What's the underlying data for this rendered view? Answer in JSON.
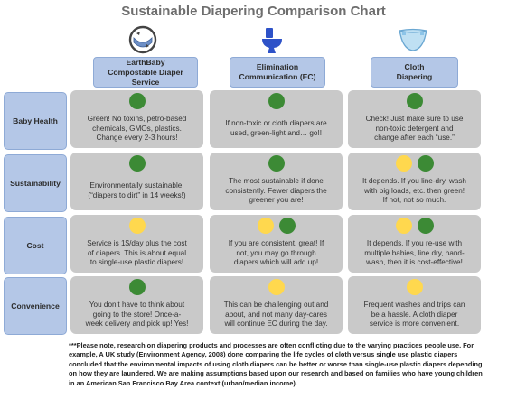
{
  "title": "Sustainable Diapering Comparison Chart",
  "columns": [
    {
      "label": "EarthBaby\nCompostable Diaper\nService",
      "icon": "compost-diaper-icon"
    },
    {
      "label": "Elimination\nCommunication  (EC)",
      "icon": "toilet-icon"
    },
    {
      "label": "Cloth\nDiapering",
      "icon": "cloth-diaper-icon"
    }
  ],
  "rows": [
    {
      "label": "Baby Health",
      "cells": [
        {
          "dots": [
            "green"
          ],
          "text": "Green! No toxins, petro-based\nchemicals, GMOs, plastics.\nChange every 2-3 hours!"
        },
        {
          "dots": [
            "green"
          ],
          "text": "If non-toxic or cloth diapers are\nused, green-light and… go!!"
        },
        {
          "dots": [
            "green"
          ],
          "text": "Check! Just make sure to use\nnon-toxic detergent and\nchange after each “use.”"
        }
      ]
    },
    {
      "label": "Sustainability",
      "cells": [
        {
          "dots": [
            "green"
          ],
          "text": "Environmentally sustainable!\n(“diapers to dirt” in 14 weeks!)"
        },
        {
          "dots": [
            "green"
          ],
          "text": "The most sustainable if done\nconsistently. Fewer diapers the\ngreener you are!"
        },
        {
          "dots": [
            "yellow",
            "green"
          ],
          "text": "It depends. If you line-dry, wash\nwith big loads, etc. then green!\nIf not, not so much."
        }
      ]
    },
    {
      "label": "Cost",
      "cells": [
        {
          "dots": [
            "yellow"
          ],
          "text": "Service is 1$/day plus the cost\nof diapers. This is about equal\nto single-use plastic diapers!"
        },
        {
          "dots": [
            "yellow",
            "green"
          ],
          "text": "If you are consistent, great! If\nnot, you may go through\ndiapers which will add up!"
        },
        {
          "dots": [
            "yellow",
            "green"
          ],
          "text": "It depends. If you re-use with\nmultiple babies, line dry, hand-\nwash, then it is cost-effective!"
        }
      ]
    },
    {
      "label": "Convenience",
      "cells": [
        {
          "dots": [
            "green"
          ],
          "text": "You don’t have to think about\ngoing to the store! Once-a-\nweek delivery and pick up! Yes!"
        },
        {
          "dots": [
            "yellow"
          ],
          "text": "This can be challenging out and\nabout, and not many day-cares\nwill continue EC during the day."
        },
        {
          "dots": [
            "yellow"
          ],
          "text": "Frequent washes and trips can\nbe a hassle. A cloth diaper\nservice is more convenient."
        }
      ]
    }
  ],
  "note": "***Please note, research on diapering products and processes are often conflicting due to the varying practices people use. For example, A UK study (Environment Agency, 2008) done comparing the life cycles of cloth versus single use plastic diapers concluded that the environmental impacts of using cloth diapers can be better or worse than single-use plastic diapers depending on how they are laundered. We are making assumptions based upon our research and based on families who have young children in an American San Francisco Bay Area context (urban/median income).",
  "colors": {
    "green": "#3c8a35",
    "yellow": "#ffd84e",
    "header": "#b4c7e7",
    "cell": "#c9c9c9"
  }
}
